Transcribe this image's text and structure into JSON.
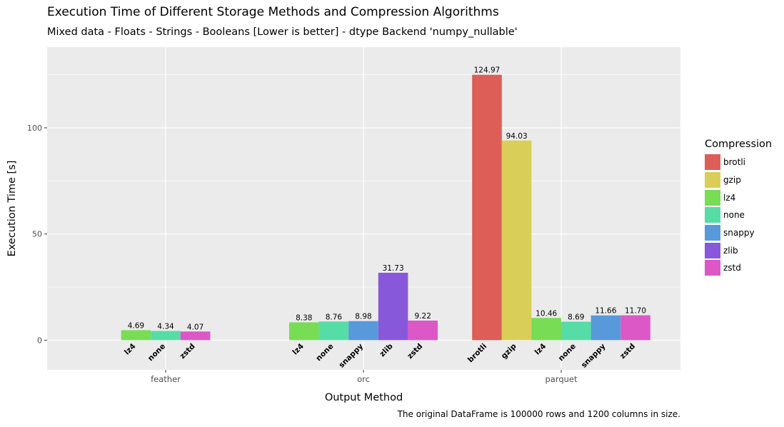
{
  "chart_data": {
    "type": "bar",
    "title": "Execution Time of Different Storage Methods and Compression Algorithms",
    "subtitle": "Mixed data - Floats - Strings - Booleans [Lower is better] - dtype Backend 'numpy_nullable'",
    "caption": "The original DataFrame is 100000 rows and 1200 columns in size.",
    "xlabel": "Output Method",
    "ylabel": "Execution Time [s]",
    "ylim": [
      -14,
      138
    ],
    "yticks": [
      0,
      50,
      100
    ],
    "legend_title": "Compression",
    "legend_position": "right",
    "grid": true,
    "colors": {
      "brotli": "#dc5e57",
      "gzip": "#d9cf58",
      "lz4": "#78dc55",
      "none": "#56dca6",
      "snappy": "#5899db",
      "zlib": "#8858db",
      "zstd": "#db58c6"
    },
    "legend": [
      "brotli",
      "gzip",
      "lz4",
      "none",
      "snappy",
      "zlib",
      "zstd"
    ],
    "groups": [
      {
        "name": "feather",
        "bars": [
          {
            "compression": "lz4",
            "value": 4.69,
            "label": "4.69"
          },
          {
            "compression": "none",
            "value": 4.34,
            "label": "4.34"
          },
          {
            "compression": "zstd",
            "value": 4.07,
            "label": "4.07"
          }
        ]
      },
      {
        "name": "orc",
        "bars": [
          {
            "compression": "lz4",
            "value": 8.38,
            "label": "8.38"
          },
          {
            "compression": "none",
            "value": 8.76,
            "label": "8.76"
          },
          {
            "compression": "snappy",
            "value": 8.98,
            "label": "8.98"
          },
          {
            "compression": "zlib",
            "value": 31.73,
            "label": "31.73"
          },
          {
            "compression": "zstd",
            "value": 9.22,
            "label": "9.22"
          }
        ]
      },
      {
        "name": "parquet",
        "bars": [
          {
            "compression": "brotli",
            "value": 124.97,
            "label": "124.97"
          },
          {
            "compression": "gzip",
            "value": 94.03,
            "label": "94.03"
          },
          {
            "compression": "lz4",
            "value": 10.46,
            "label": "10.46"
          },
          {
            "compression": "none",
            "value": 8.69,
            "label": "8.69"
          },
          {
            "compression": "snappy",
            "value": 11.66,
            "label": "11.66"
          },
          {
            "compression": "zstd",
            "value": 11.7,
            "label": "11.70"
          }
        ]
      }
    ]
  }
}
